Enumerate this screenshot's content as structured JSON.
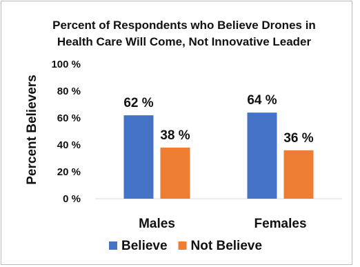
{
  "chart_data": {
    "type": "bar",
    "title_lines": [
      "Percent of Respondents who Believe Drones in",
      "Health Care Will Come, Not Innovative Leader"
    ],
    "ylabel": "Percent Believers",
    "xlabel": "",
    "ylim": [
      0,
      100
    ],
    "y_ticks": [
      0,
      20,
      40,
      60,
      80,
      100
    ],
    "y_tick_labels": [
      "0 %",
      "20 %",
      "40 %",
      "60 %",
      "80 %",
      "100 %"
    ],
    "grid": false,
    "legend_position": "bottom",
    "categories": [
      "Males",
      "Females"
    ],
    "series": [
      {
        "name": "Believe",
        "values": [
          62,
          64
        ],
        "labels": [
          "62 %",
          "64 %"
        ],
        "color": "#4472c4"
      },
      {
        "name": "Not Believe",
        "values": [
          38,
          36
        ],
        "labels": [
          "38 %",
          "36 %"
        ],
        "color": "#ed7d31"
      }
    ]
  }
}
